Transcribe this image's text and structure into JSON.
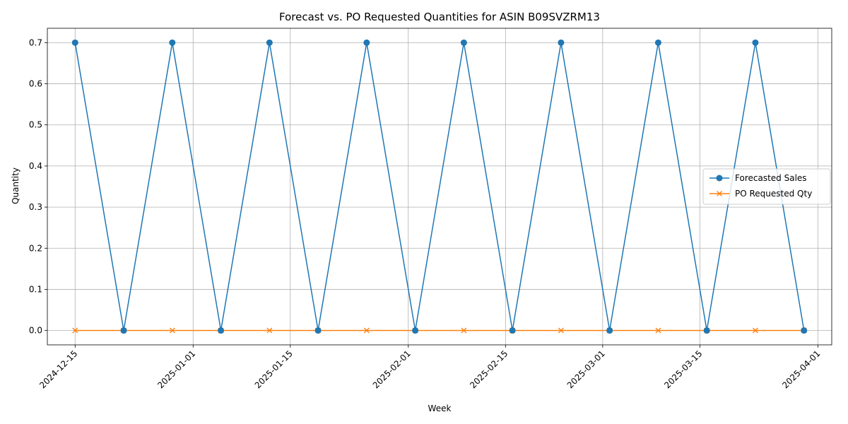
{
  "chart_data": {
    "type": "line",
    "title": "Forecast vs. PO Requested Quantities for ASIN B09SVZRM13",
    "xlabel": "Week",
    "ylabel": "Quantity",
    "x": [
      "2024-12-15",
      "2024-12-22",
      "2024-12-29",
      "2025-01-05",
      "2025-01-12",
      "2025-01-19",
      "2025-01-26",
      "2025-02-02",
      "2025-02-09",
      "2025-02-16",
      "2025-02-23",
      "2025-03-02",
      "2025-03-09",
      "2025-03-16",
      "2025-03-23",
      "2025-03-30"
    ],
    "series": [
      {
        "name": "Forecasted Sales",
        "marker": "circle",
        "color": "#1f77b4",
        "values": [
          0.7,
          0,
          0.7,
          0,
          0.7,
          0,
          0.7,
          0,
          0.7,
          0,
          0.7,
          0,
          0.7,
          0,
          0.7,
          0
        ]
      },
      {
        "name": "PO Requested Qty",
        "marker": "x",
        "color": "#ff7f0e",
        "values": [
          0,
          0,
          0,
          0,
          0,
          0,
          0,
          0,
          0,
          0,
          0,
          0,
          0,
          0,
          0,
          0
        ]
      }
    ],
    "xlim": [
      "2024-12-11",
      "2025-04-03"
    ],
    "ylim": [
      -0.035,
      0.735
    ],
    "x_ticks": [
      "2024-12-15",
      "2025-01-01",
      "2025-01-15",
      "2025-02-01",
      "2025-02-15",
      "2025-03-01",
      "2025-03-15",
      "2025-04-01"
    ],
    "y_ticks": [
      0.0,
      0.1,
      0.2,
      0.3,
      0.4,
      0.5,
      0.6,
      0.7
    ],
    "y_tick_labels": [
      "0.0",
      "0.1",
      "0.2",
      "0.3",
      "0.4",
      "0.5",
      "0.6",
      "0.7"
    ],
    "grid": true,
    "legend_position": "center-right"
  }
}
